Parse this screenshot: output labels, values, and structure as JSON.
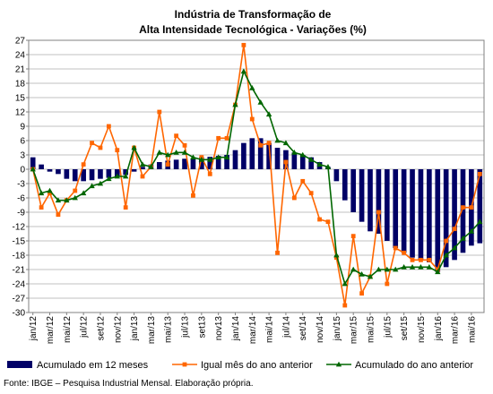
{
  "chart_data": {
    "type": "line",
    "title_line1": "Indústria de Transformação de",
    "title_line2": "Alta Intensidade Tecnológica - Variações (%)",
    "source": "Fonte: IBGE – Pesquisa Industrial Mensal. Elaboração própria.",
    "ylim": [
      -30,
      27
    ],
    "yticks": [
      27,
      24,
      21,
      18,
      15,
      12,
      9,
      6,
      3,
      0,
      -3,
      -6,
      -9,
      -12,
      -15,
      -18,
      -21,
      -24,
      -27,
      -30
    ],
    "x": [
      "jan/12",
      "fev/12",
      "mar/12",
      "abr/12",
      "mai/12",
      "jun/12",
      "jul/12",
      "ago/12",
      "set/12",
      "out/12",
      "nov/12",
      "dez/12",
      "jan/13",
      "fev/13",
      "mar/13",
      "abr/13",
      "mai/13",
      "jun/13",
      "jul/13",
      "ago/13",
      "set/13",
      "out/13",
      "nov/13",
      "dez/13",
      "jan/14",
      "fev/14",
      "mar/14",
      "abr/14",
      "mai/14",
      "jun/14",
      "jul/14",
      "ago/14",
      "set/14",
      "out/14",
      "nov/14",
      "dez/14",
      "jan/15",
      "fev/15",
      "mar/15",
      "abr/15",
      "mai/15",
      "jun/15",
      "jul/15",
      "ago/15",
      "set/15",
      "out/15",
      "nov/15",
      "dez/15",
      "jan/16",
      "fev/16",
      "mar/16",
      "abr/16",
      "mai/16",
      "jun/16"
    ],
    "xtick_labels": [
      "jan/12",
      "mar/12",
      "mai/12",
      "jul/12",
      "set/12",
      "nov/12",
      "jan/13",
      "mar/13",
      "mai/13",
      "jul/13",
      "set13",
      "nov13",
      "jan/14",
      "mar/14",
      "mai/14",
      "jul/14",
      "set/14",
      "nov/14",
      "jan/15",
      "mar/15",
      "mai/15",
      "jul/15",
      "set/15",
      "nov/15",
      "jan/16",
      "mar/16",
      "mai/16"
    ],
    "series": [
      {
        "name": "Acumulado em 12 meses",
        "kind": "bar",
        "color": "#000066",
        "values": [
          2.5,
          1.0,
          -0.5,
          -1.0,
          -2.0,
          -2.5,
          -2.5,
          -2.3,
          -2.0,
          -1.8,
          -1.5,
          -1.2,
          -0.5,
          0.5,
          1.0,
          1.5,
          1.8,
          2.0,
          2.2,
          2.3,
          2.5,
          2.6,
          2.8,
          3.0,
          4.0,
          5.5,
          6.5,
          6.5,
          5.5,
          4.5,
          4.0,
          3.5,
          3.0,
          2.5,
          1.5,
          0.5,
          -2.5,
          -6.5,
          -9.0,
          -11.0,
          -13.0,
          -13.5,
          -15.0,
          -16.5,
          -17.5,
          -18.5,
          -19.0,
          -19.5,
          -21.5,
          -20.5,
          -19.0,
          -17.5,
          -16.0,
          -15.5
        ]
      },
      {
        "name": "Igual mês do ano anterior",
        "kind": "line",
        "marker": "square",
        "color": "#ff6600",
        "values": [
          0.0,
          -8.0,
          -5.0,
          -9.5,
          -6.5,
          -4.5,
          1.0,
          5.5,
          4.5,
          9.0,
          4.0,
          -8.0,
          4.5,
          -1.5,
          0.5,
          12.0,
          1.0,
          7.0,
          5.0,
          -5.5,
          2.5,
          -1.0,
          6.5,
          6.5,
          13.5,
          26.0,
          10.5,
          5.0,
          5.5,
          -17.5,
          1.5,
          -6.0,
          -2.5,
          -5.0,
          -10.5,
          -11.0,
          -18.5,
          -28.5,
          -14.0,
          -26.0,
          -22.5,
          -9.0,
          -24.0,
          -16.5,
          -17.5,
          -19.0,
          -19.0,
          -19.0,
          -21.0,
          -15.0,
          -12.5,
          -8.0,
          -8.0,
          -1.0
        ]
      },
      {
        "name": "Acumulado do ano anterior",
        "kind": "line",
        "marker": "triangle",
        "color": "#006600",
        "values": [
          0.0,
          -5.0,
          -4.5,
          -6.5,
          -6.5,
          -6.0,
          -5.0,
          -3.5,
          -3.0,
          -2.0,
          -1.5,
          -1.5,
          4.5,
          1.0,
          0.5,
          3.5,
          3.0,
          3.5,
          3.5,
          2.5,
          2.0,
          2.0,
          2.5,
          2.5,
          13.5,
          20.5,
          17.0,
          14.0,
          11.5,
          6.0,
          5.5,
          3.5,
          3.0,
          2.0,
          1.0,
          0.5,
          -18.0,
          -24.0,
          -21.0,
          -22.0,
          -22.5,
          -21.0,
          -21.0,
          -21.0,
          -20.5,
          -20.5,
          -20.5,
          -20.5,
          -21.5,
          -18.0,
          -16.5,
          -14.5,
          -13.0,
          -11.0
        ]
      }
    ],
    "grid": true,
    "legend_position": "bottom"
  }
}
